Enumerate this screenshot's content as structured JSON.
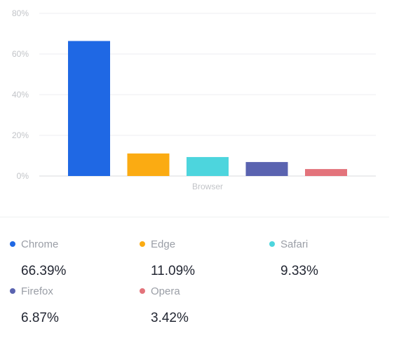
{
  "chart_data": {
    "type": "bar",
    "xlabel": "Browser",
    "ylabel": "",
    "ylim": [
      0,
      80
    ],
    "yticks": [
      0,
      20,
      40,
      60,
      80
    ],
    "ytick_labels": [
      "0%",
      "20%",
      "40%",
      "60%",
      "80%"
    ],
    "grid": true,
    "categories": [
      "Chrome",
      "Edge",
      "Safari",
      "Firefox",
      "Opera"
    ],
    "values": [
      66.39,
      11.09,
      9.33,
      6.87,
      3.42
    ],
    "colors": [
      "#1f68e4",
      "#fbab12",
      "#4dd5dd",
      "#5a63b0",
      "#e3737b"
    ]
  },
  "legend": {
    "items": [
      {
        "name": "Chrome",
        "value": "66.39%",
        "color": "#1f68e4"
      },
      {
        "name": "Edge",
        "value": "11.09%",
        "color": "#fbab12"
      },
      {
        "name": "Safari",
        "value": "9.33%",
        "color": "#4dd5dd"
      },
      {
        "name": "Firefox",
        "value": "6.87%",
        "color": "#5a63b0"
      },
      {
        "name": "Opera",
        "value": "3.42%",
        "color": "#e3737b"
      }
    ]
  }
}
